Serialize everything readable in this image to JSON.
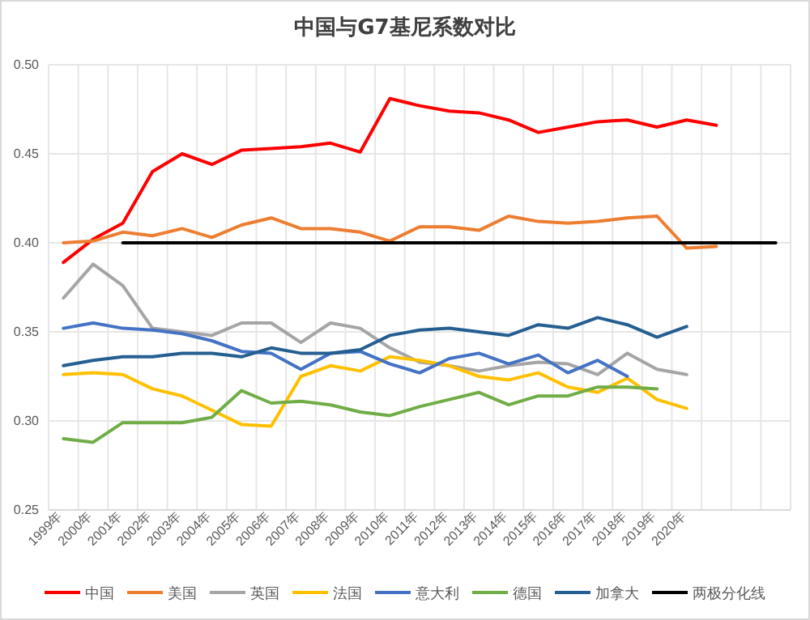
{
  "chart_data": {
    "type": "line",
    "title": "中国与G7基尼系数对比",
    "categories": [
      "1999年",
      "2000年",
      "2001年",
      "2002年",
      "2003年",
      "2004年",
      "2005年",
      "2006年",
      "2007年",
      "2008年",
      "2009年",
      "2010年",
      "2011年",
      "2012年",
      "2013年",
      "2014年",
      "2015年",
      "2016年",
      "2017年",
      "2018年",
      "2019年",
      "2020年",
      null,
      null,
      null
    ],
    "ylim": [
      0.25,
      0.5
    ],
    "yticks": [
      {
        "value": 0.25,
        "label": "0.25"
      },
      {
        "value": 0.3,
        "label": "0.30"
      },
      {
        "value": 0.35,
        "label": "0.35"
      },
      {
        "value": 0.4,
        "label": "0.40"
      },
      {
        "value": 0.45,
        "label": "0.45"
      },
      {
        "value": 0.5,
        "label": "0.50"
      }
    ],
    "grid": true,
    "legend": "bottom",
    "marker": "none",
    "line_style": "solid",
    "series": [
      {
        "name": "中国",
        "color": "#ff0000",
        "values": [
          0.389,
          0.402,
          0.411,
          0.44,
          0.45,
          0.444,
          0.452,
          0.453,
          0.454,
          0.456,
          0.451,
          0.481,
          0.477,
          0.474,
          0.473,
          0.469,
          0.462,
          0.465,
          0.468,
          0.469,
          0.465,
          0.469,
          0.466,
          null,
          null
        ]
      },
      {
        "name": "美国",
        "color": "#ed7d31",
        "values": [
          0.4,
          0.401,
          0.406,
          0.404,
          0.408,
          0.403,
          0.41,
          0.414,
          0.408,
          0.408,
          0.406,
          0.401,
          0.409,
          0.409,
          0.407,
          0.415,
          0.412,
          0.411,
          0.412,
          0.414,
          0.415,
          0.397,
          0.398,
          null,
          null
        ]
      },
      {
        "name": "英国",
        "color": "#a5a5a5",
        "values": [
          0.369,
          0.388,
          0.376,
          0.352,
          0.35,
          0.348,
          0.355,
          0.355,
          0.344,
          0.355,
          0.352,
          0.341,
          0.333,
          0.331,
          0.328,
          0.331,
          0.333,
          0.332,
          0.326,
          0.338,
          0.329,
          0.326,
          null,
          null,
          null
        ]
      },
      {
        "name": "法国",
        "color": "#ffc000",
        "values": [
          0.326,
          0.327,
          0.326,
          0.318,
          0.314,
          0.306,
          0.298,
          0.297,
          0.325,
          0.331,
          0.328,
          0.336,
          0.334,
          0.331,
          0.325,
          0.323,
          0.327,
          0.319,
          0.316,
          0.324,
          0.312,
          0.307,
          null,
          null,
          null
        ]
      },
      {
        "name": "意大利",
        "color": "#4472c4",
        "values": [
          0.352,
          0.355,
          0.352,
          0.351,
          0.349,
          0.345,
          0.339,
          0.338,
          0.329,
          0.338,
          0.339,
          0.332,
          0.327,
          0.335,
          0.338,
          0.332,
          0.337,
          0.327,
          0.334,
          0.325,
          null,
          null,
          null,
          null,
          null
        ]
      },
      {
        "name": "德国",
        "color": "#70ad47",
        "values": [
          0.29,
          0.288,
          0.299,
          0.299,
          0.299,
          0.302,
          0.317,
          0.31,
          0.311,
          0.309,
          0.305,
          0.303,
          0.308,
          0.312,
          0.316,
          0.309,
          0.314,
          0.314,
          0.319,
          0.319,
          0.318,
          null,
          null,
          null,
          null
        ]
      },
      {
        "name": "加拿大",
        "color": "#255e91",
        "values": [
          0.331,
          0.334,
          0.336,
          0.336,
          0.338,
          0.338,
          0.336,
          0.341,
          0.338,
          0.338,
          0.34,
          0.348,
          0.351,
          0.352,
          0.35,
          0.348,
          0.354,
          0.352,
          0.358,
          0.354,
          0.347,
          0.353,
          null,
          null,
          null
        ]
      },
      {
        "name": "两极分化线",
        "color": "#000000",
        "values": [
          null,
          null,
          0.4,
          0.4,
          0.4,
          0.4,
          0.4,
          0.4,
          0.4,
          0.4,
          0.4,
          0.4,
          0.4,
          0.4,
          0.4,
          0.4,
          0.4,
          0.4,
          0.4,
          0.4,
          0.4,
          0.4,
          0.4,
          0.4,
          0.4
        ]
      }
    ]
  }
}
